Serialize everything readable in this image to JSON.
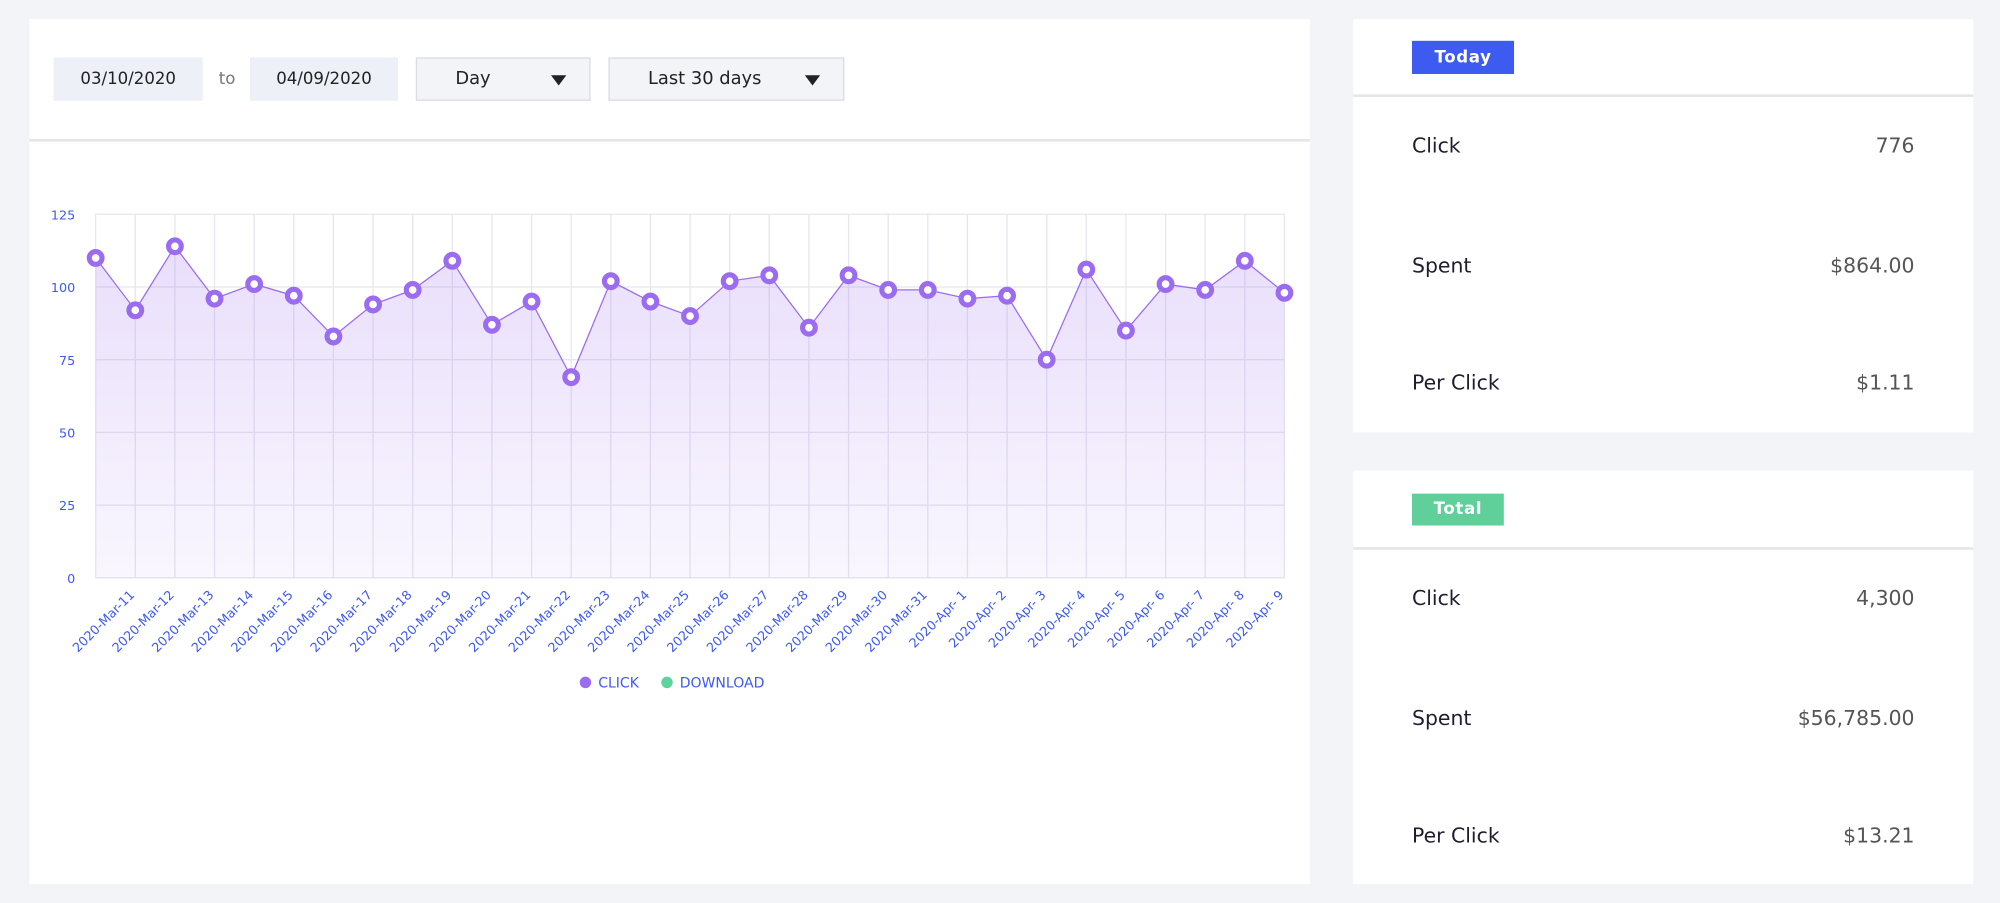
{
  "filters": {
    "start_date": "03/10/2020",
    "separator": "to",
    "end_date": "04/09/2020",
    "interval": "Day",
    "range": "Last 30 days"
  },
  "chart_data": {
    "type": "line",
    "categories": [
      null,
      "2020-Mar-11",
      "2020-Mar-12",
      "2020-Mar-13",
      "2020-Mar-14",
      "2020-Mar-15",
      "2020-Mar-16",
      "2020-Mar-17",
      "2020-Mar-18",
      "2020-Mar-19",
      "2020-Mar-20",
      "2020-Mar-21",
      "2020-Mar-22",
      "2020-Mar-23",
      "2020-Mar-24",
      "2020-Mar-25",
      "2020-Mar-26",
      "2020-Mar-27",
      "2020-Mar-28",
      "2020-Mar-29",
      "2020-Mar-30",
      "2020-Mar-31",
      "2020-Apr- 1",
      "2020-Apr- 2",
      "2020-Apr- 3",
      "2020-Apr- 4",
      "2020-Apr- 5",
      "2020-Apr- 6",
      "2020-Apr- 7",
      "2020-Apr- 8",
      "2020-Apr- 9"
    ],
    "series": [
      {
        "name": "CLICK",
        "color": "#9b6cf0",
        "values": [
          110,
          92,
          114,
          96,
          101,
          97,
          83,
          94,
          99,
          109,
          87,
          95,
          69,
          102,
          95,
          90,
          102,
          104,
          86,
          104,
          99,
          99,
          96,
          97,
          75,
          106,
          85,
          101,
          99,
          109,
          98
        ]
      },
      {
        "name": "DOWNLOAD",
        "color": "#5dd39e"
      }
    ],
    "ylim": [
      0,
      125
    ],
    "yticks": [
      0,
      25,
      50,
      75,
      100,
      125
    ],
    "grid": true
  },
  "today": {
    "title": "Today",
    "rows": [
      {
        "label": "Click",
        "value": "776"
      },
      {
        "label": "Spent",
        "value": "$864.00"
      },
      {
        "label": "Per Click",
        "value": "$1.11"
      }
    ]
  },
  "total": {
    "title": "Total",
    "rows": [
      {
        "label": "Click",
        "value": "4,300"
      },
      {
        "label": "Spent",
        "value": "$56,785.00"
      },
      {
        "label": "Per Click",
        "value": "$13.21"
      }
    ]
  }
}
